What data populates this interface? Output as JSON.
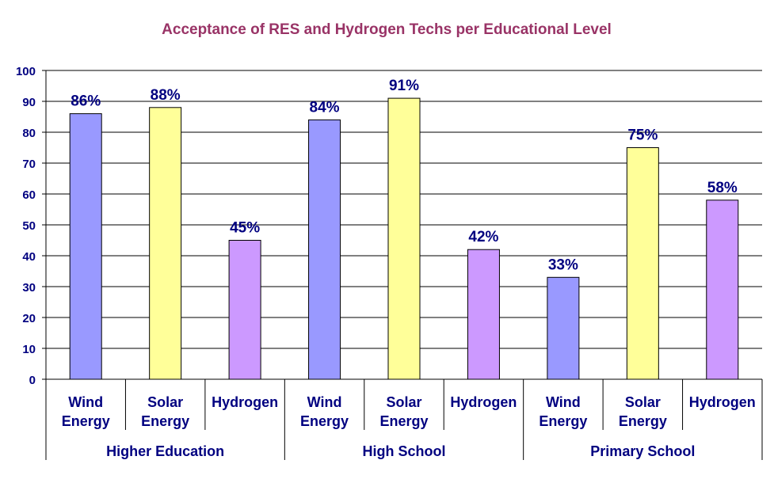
{
  "chart_data": {
    "type": "bar",
    "title": "Acceptance of RES and Hydrogen Techs per Educational Level",
    "xlabel": "",
    "ylabel": "",
    "ylim": [
      0,
      100
    ],
    "yticks": [
      0,
      10,
      20,
      30,
      40,
      50,
      60,
      70,
      80,
      90,
      100
    ],
    "grid": true,
    "groups": [
      "Higher Education",
      "High School",
      "Primary School"
    ],
    "subcategories": [
      [
        "Wind",
        "Energy"
      ],
      [
        "Solar",
        "Energy"
      ],
      [
        "Hydrogen"
      ]
    ],
    "series_colors": [
      "#9999FF",
      "#FFFF99",
      "#CC99FF"
    ],
    "values": [
      86,
      88,
      45,
      84,
      91,
      42,
      33,
      75,
      58
    ],
    "data_labels": [
      "86%",
      "88%",
      "45%",
      "84%",
      "91%",
      "42%",
      "33%",
      "75%",
      "58%"
    ]
  }
}
